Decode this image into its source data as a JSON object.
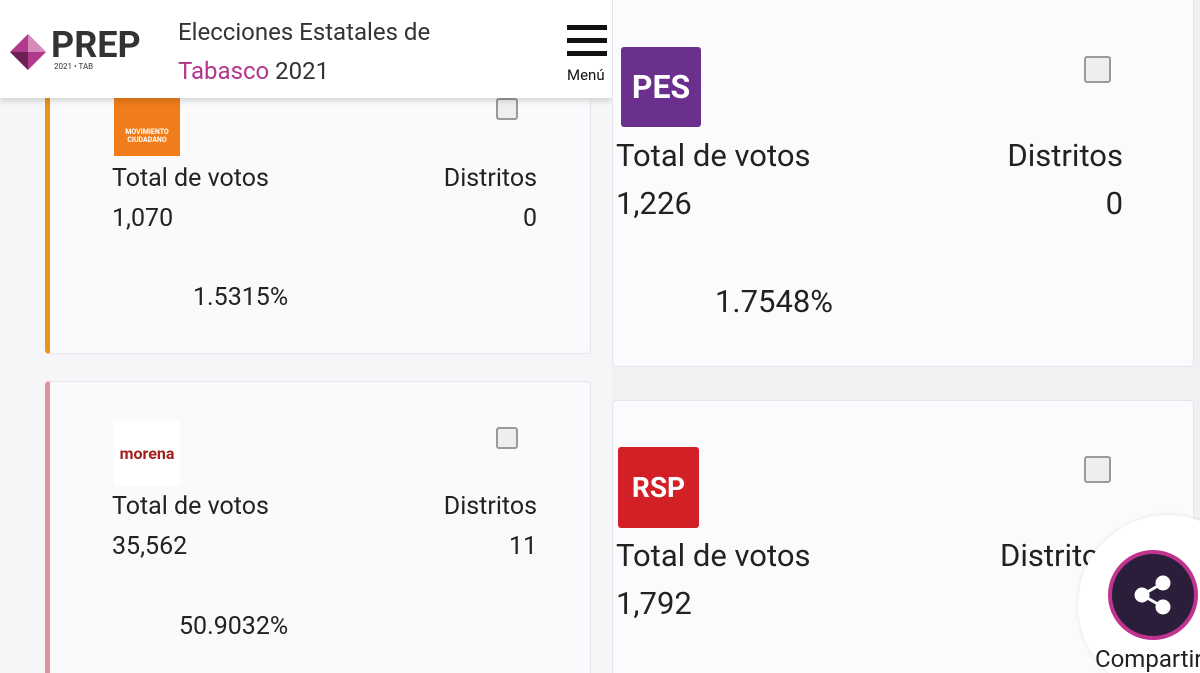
{
  "header": {
    "logo": "PREP",
    "logo_sub": "2021 • TAB",
    "title_line1": "Elecciones Estatales de",
    "title_state": "Tabasco",
    "title_year": "2021",
    "menu": "Menú"
  },
  "cards": [
    {
      "logo": "MOVIMIENTO CIUDADANO",
      "votes_label": "Total de votos",
      "districts_label": "Distritos",
      "votes": "1,070",
      "districts": "0",
      "percent": "1.5315%"
    },
    {
      "logo": "morena",
      "votes_label": "Total de votos",
      "districts_label": "Distritos",
      "votes": "35,562",
      "districts": "11",
      "percent": "50.9032%"
    },
    {
      "logo": "PES",
      "votes_label": "Total de votos",
      "districts_label": "Distritos",
      "votes": "1,226",
      "districts": "0",
      "percent": "1.7548%"
    },
    {
      "logo": "RSP",
      "votes_label": "Total de votos",
      "districts_label": "Distritos",
      "votes": "1,792"
    }
  ],
  "share": "Compartir"
}
